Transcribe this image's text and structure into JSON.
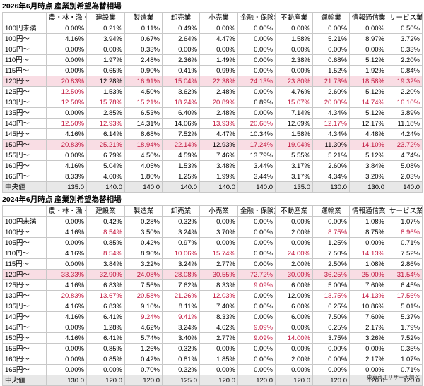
{
  "section1": {
    "title": "2026年6月時点 産業別希望為替相場",
    "headers": [
      "",
      "農・林・漁・鉱業",
      "建設業",
      "製造業",
      "卸売業",
      "小売業",
      "金融・保険業",
      "不動産業",
      "運輸業",
      "情報通信業",
      "サービス業他"
    ],
    "rows": [
      {
        "label": "100円未満",
        "values": [
          "0.00%",
          "0.21%",
          "0.11%",
          "0.49%",
          "0.00%",
          "0.00%",
          "0.00%",
          "0.00%",
          "0.00%",
          "0.50%"
        ],
        "red": []
      },
      {
        "label": "100円～",
        "values": [
          "4.16%",
          "3.94%",
          "0.67%",
          "2.64%",
          "4.47%",
          "0.00%",
          "1.58%",
          "5.21%",
          "8.97%",
          "3.72%"
        ],
        "red": []
      },
      {
        "label": "105円～",
        "values": [
          "0.00%",
          "0.00%",
          "0.33%",
          "0.00%",
          "0.00%",
          "0.00%",
          "0.00%",
          "0.00%",
          "0.00%",
          "0.33%"
        ],
        "red": []
      },
      {
        "label": "110円～",
        "values": [
          "0.00%",
          "1.97%",
          "2.48%",
          "2.36%",
          "1.49%",
          "0.00%",
          "2.38%",
          "0.68%",
          "5.12%",
          "2.20%"
        ],
        "red": []
      },
      {
        "label": "115円～",
        "values": [
          "0.00%",
          "0.65%",
          "0.90%",
          "0.41%",
          "0.99%",
          "0.00%",
          "0.00%",
          "1.52%",
          "1.92%",
          "0.84%"
        ],
        "red": []
      },
      {
        "label": "120円～",
        "values": [
          "20.83%",
          "12.28%",
          "16.91%",
          "15.04%",
          "22.38%",
          "24.13%",
          "23.80%",
          "21.73%",
          "18.58%",
          "19.32%"
        ],
        "red": [
          0,
          2,
          3,
          4,
          5,
          6,
          7,
          8,
          9
        ],
        "highlight": true
      },
      {
        "label": "125円～",
        "values": [
          "12.50%",
          "1.53%",
          "4.50%",
          "3.62%",
          "2.48%",
          "0.00%",
          "4.76%",
          "2.60%",
          "5.12%",
          "2.20%"
        ],
        "red": [
          0
        ]
      },
      {
        "label": "130円～",
        "values": [
          "12.50%",
          "15.78%",
          "15.21%",
          "18.24%",
          "20.89%",
          "6.89%",
          "15.07%",
          "20.00%",
          "14.74%",
          "16.10%"
        ],
        "red": [
          0,
          1,
          2,
          3,
          4,
          6,
          7,
          8,
          9
        ]
      },
      {
        "label": "135円～",
        "values": [
          "0.00%",
          "2.85%",
          "6.53%",
          "6.40%",
          "2.48%",
          "0.00%",
          "7.14%",
          "4.34%",
          "5.12%",
          "3.89%"
        ],
        "red": []
      },
      {
        "label": "140円～",
        "values": [
          "12.50%",
          "12.93%",
          "14.31%",
          "14.06%",
          "13.93%",
          "20.68%",
          "12.69%",
          "12.17%",
          "12.17%",
          "11.18%"
        ],
        "red": [
          0,
          1,
          4,
          5,
          7
        ]
      },
      {
        "label": "145円～",
        "values": [
          "4.16%",
          "6.14%",
          "8.68%",
          "7.52%",
          "4.47%",
          "10.34%",
          "1.58%",
          "4.34%",
          "4.48%",
          "4.24%"
        ],
        "red": []
      },
      {
        "label": "150円～",
        "values": [
          "20.83%",
          "25.21%",
          "18.94%",
          "22.14%",
          "12.93%",
          "17.24%",
          "19.04%",
          "11.30%",
          "14.10%",
          "23.72%"
        ],
        "red": [
          0,
          1,
          2,
          3,
          5,
          6,
          8,
          9
        ],
        "highlight": true
      },
      {
        "label": "155円～",
        "values": [
          "0.00%",
          "6.79%",
          "4.50%",
          "4.59%",
          "7.46%",
          "13.79%",
          "5.55%",
          "5.21%",
          "5.12%",
          "4.74%"
        ],
        "red": []
      },
      {
        "label": "160円～",
        "values": [
          "4.16%",
          "5.04%",
          "4.05%",
          "1.53%",
          "3.48%",
          "3.44%",
          "3.17%",
          "2.60%",
          "3.84%",
          "5.08%"
        ],
        "red": []
      },
      {
        "label": "165円～",
        "values": [
          "8.33%",
          "4.60%",
          "1.80%",
          "1.25%",
          "1.99%",
          "3.44%",
          "3.17%",
          "4.34%",
          "3.20%",
          "2.03%"
        ],
        "red": []
      },
      {
        "label": "中央値",
        "values": [
          "135.0",
          "140.0",
          "140.0",
          "140.0",
          "140.0",
          "140.0",
          "135.0",
          "130.0",
          "130.0",
          "140.0"
        ],
        "red": [],
        "median": true
      }
    ]
  },
  "section2": {
    "title": "2024年6月時点 産業別希望為替相場",
    "headers": [
      "",
      "農・林・漁・鉱業",
      "建設業",
      "製造業",
      "卸売業",
      "小売業",
      "金融・保険業",
      "不動産業",
      "運輸業",
      "情報通信業",
      "サービス業他"
    ],
    "rows": [
      {
        "label": "100円未満",
        "values": [
          "0.00%",
          "0.42%",
          "0.28%",
          "0.32%",
          "0.00%",
          "0.00%",
          "0.00%",
          "0.00%",
          "1.08%",
          "1.07%"
        ],
        "red": []
      },
      {
        "label": "100円～",
        "values": [
          "4.16%",
          "8.54%",
          "3.50%",
          "3.24%",
          "3.70%",
          "0.00%",
          "2.00%",
          "8.75%",
          "8.75%",
          "8.96%"
        ],
        "red": [
          1,
          7,
          9
        ]
      },
      {
        "label": "105円～",
        "values": [
          "0.00%",
          "0.85%",
          "0.42%",
          "0.97%",
          "0.00%",
          "0.00%",
          "0.00%",
          "1.25%",
          "0.00%",
          "0.71%"
        ],
        "red": []
      },
      {
        "label": "110円～",
        "values": [
          "4.16%",
          "8.54%",
          "8.96%",
          "10.06%",
          "15.74%",
          "0.00%",
          "24.00%",
          "7.50%",
          "14.13%",
          "7.52%"
        ],
        "red": [
          1,
          3,
          4,
          6,
          8
        ]
      },
      {
        "label": "115円～",
        "values": [
          "0.00%",
          "3.84%",
          "3.22%",
          "3.24%",
          "2.77%",
          "0.00%",
          "2.00%",
          "2.50%",
          "1.08%",
          "2.86%"
        ],
        "red": []
      },
      {
        "label": "120円～",
        "values": [
          "33.33%",
          "32.90%",
          "24.08%",
          "28.08%",
          "30.55%",
          "72.72%",
          "30.00%",
          "36.25%",
          "25.00%",
          "31.54%"
        ],
        "red": [
          0,
          1,
          2,
          3,
          4,
          5,
          6,
          7,
          8,
          9
        ],
        "highlight": true
      },
      {
        "label": "125円～",
        "values": [
          "4.16%",
          "6.83%",
          "7.56%",
          "7.62%",
          "8.33%",
          "9.09%",
          "6.00%",
          "5.00%",
          "7.60%",
          "6.45%"
        ],
        "red": [
          5
        ]
      },
      {
        "label": "130円～",
        "values": [
          "20.83%",
          "13.67%",
          "20.58%",
          "21.26%",
          "12.03%",
          "0.00%",
          "12.00%",
          "13.75%",
          "14.13%",
          "17.56%"
        ],
        "red": [
          0,
          1,
          2,
          3,
          4,
          7,
          8,
          9
        ]
      },
      {
        "label": "135円～",
        "values": [
          "4.16%",
          "6.83%",
          "9.10%",
          "8.11%",
          "7.40%",
          "0.00%",
          "6.00%",
          "6.25%",
          "10.86%",
          "5.01%"
        ],
        "red": []
      },
      {
        "label": "140円～",
        "values": [
          "4.16%",
          "6.41%",
          "9.24%",
          "9.41%",
          "8.33%",
          "0.00%",
          "6.00%",
          "7.50%",
          "7.60%",
          "5.37%"
        ],
        "red": [
          2,
          3
        ]
      },
      {
        "label": "145円～",
        "values": [
          "0.00%",
          "1.28%",
          "4.62%",
          "3.24%",
          "4.62%",
          "9.09%",
          "0.00%",
          "6.25%",
          "2.17%",
          "1.79%"
        ],
        "red": [
          5
        ]
      },
      {
        "label": "150円～",
        "values": [
          "4.16%",
          "6.41%",
          "5.74%",
          "3.40%",
          "2.77%",
          "9.09%",
          "14.00%",
          "3.75%",
          "3.26%",
          "7.52%"
        ],
        "red": [
          5,
          6
        ]
      },
      {
        "label": "155円～",
        "values": [
          "0.00%",
          "0.85%",
          "1.26%",
          "0.32%",
          "0.00%",
          "0.00%",
          "0.00%",
          "0.00%",
          "0.00%",
          "0.35%"
        ],
        "red": []
      },
      {
        "label": "160円～",
        "values": [
          "0.00%",
          "0.85%",
          "0.42%",
          "0.81%",
          "1.85%",
          "0.00%",
          "2.00%",
          "0.00%",
          "2.17%",
          "1.07%"
        ],
        "red": []
      },
      {
        "label": "165円～",
        "values": [
          "0.00%",
          "0.00%",
          "0.70%",
          "0.32%",
          "0.00%",
          "0.00%",
          "0.00%",
          "0.00%",
          "0.00%",
          "0.71%"
        ],
        "red": []
      },
      {
        "label": "中央値",
        "values": [
          "130.0",
          "120.0",
          "120.0",
          "125.0",
          "120.0",
          "120.0",
          "120.0",
          "120.0",
          "120.0",
          "120.0"
        ],
        "red": [],
        "median": true
      }
    ]
  },
  "footnote": "東京商工リサーチ調べ"
}
